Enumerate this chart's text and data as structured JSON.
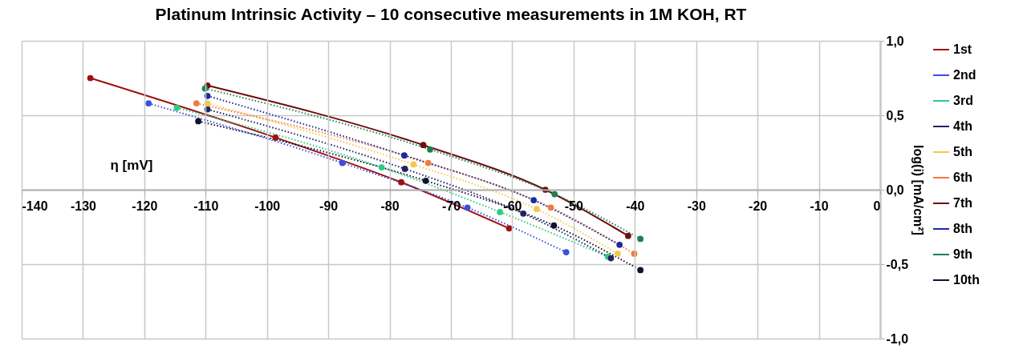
{
  "chart_data": {
    "type": "line",
    "title": "Platinum Intrinsic Activity – 10 consecutive measurements in 1M KOH, RT",
    "xlabel": "η [mV]",
    "ylabel": "log(i) [mA/cm²]",
    "xlim": [
      -140,
      0
    ],
    "xticks": [
      -140,
      -130,
      -120,
      -110,
      -100,
      -90,
      -80,
      -70,
      -60,
      -50,
      -40,
      -30,
      -20,
      -10,
      0
    ],
    "ylim": [
      -1,
      1
    ],
    "yticks": [
      {
        "value": -1,
        "label": "-1,0"
      },
      {
        "value": -0.5,
        "label": "-0,5"
      },
      {
        "value": 0,
        "label": "0,0"
      },
      {
        "value": 0.5,
        "label": "0,5"
      },
      {
        "value": 1,
        "label": "1,0"
      }
    ],
    "grid": true,
    "legend": "right",
    "marker": "circle",
    "series": [
      {
        "name": "1st",
        "color": "#a01010",
        "line_style": "solid",
        "x": [
          -128.8,
          -98.6,
          -78.1,
          -60.5
        ],
        "values": [
          0.75,
          0.35,
          0.05,
          -0.26
        ]
      },
      {
        "name": "2nd",
        "color": "#3b4fe0",
        "line_style": "dotted",
        "x": [
          -119.3,
          -87.7,
          -67.3,
          -51.2
        ],
        "values": [
          0.58,
          0.18,
          -0.12,
          -0.42
        ]
      },
      {
        "name": "3rd",
        "color": "#2ecc80",
        "line_style": "dotted",
        "x": [
          -114.7,
          -81.3,
          -62.0,
          -44.4
        ],
        "values": [
          0.55,
          0.15,
          -0.15,
          -0.45
        ]
      },
      {
        "name": "4th",
        "color": "#22245e",
        "line_style": "dotted",
        "x": [
          -109.7,
          -77.5,
          -58.2,
          -43.9
        ],
        "values": [
          0.54,
          0.14,
          -0.16,
          -0.46
        ]
      },
      {
        "name": "5th",
        "color": "#f2c84b",
        "line_style": "dotted",
        "x": [
          -109.7,
          -76.1,
          -56.0,
          -42.8
        ],
        "values": [
          0.58,
          0.17,
          -0.13,
          -0.43
        ]
      },
      {
        "name": "6th",
        "color": "#f07c3c",
        "line_style": "dotted",
        "x": [
          -111.5,
          -73.7,
          -53.7,
          -40.1
        ],
        "values": [
          0.58,
          0.18,
          -0.12,
          -0.43
        ]
      },
      {
        "name": "7th",
        "color": "#6e0e0e",
        "line_style": "solid",
        "x": [
          -109.7,
          -74.5,
          -54.6,
          -41.1
        ],
        "values": [
          0.7,
          0.3,
          0.0,
          -0.31
        ]
      },
      {
        "name": "8th",
        "color": "#1a2aa0",
        "line_style": "dotted",
        "x": [
          -109.7,
          -77.6,
          -56.5,
          -42.5
        ],
        "values": [
          0.63,
          0.23,
          -0.07,
          -0.37
        ]
      },
      {
        "name": "9th",
        "color": "#1e8050",
        "line_style": "dotted",
        "x": [
          -110.1,
          -73.4,
          -53.1,
          -39.1
        ],
        "values": [
          0.68,
          0.27,
          -0.03,
          -0.33
        ]
      },
      {
        "name": "10th",
        "color": "#10142e",
        "line_style": "dotted",
        "x": [
          -111.2,
          -74.1,
          -53.2,
          -39.1
        ],
        "values": [
          0.46,
          0.06,
          -0.24,
          -0.54
        ]
      }
    ]
  }
}
